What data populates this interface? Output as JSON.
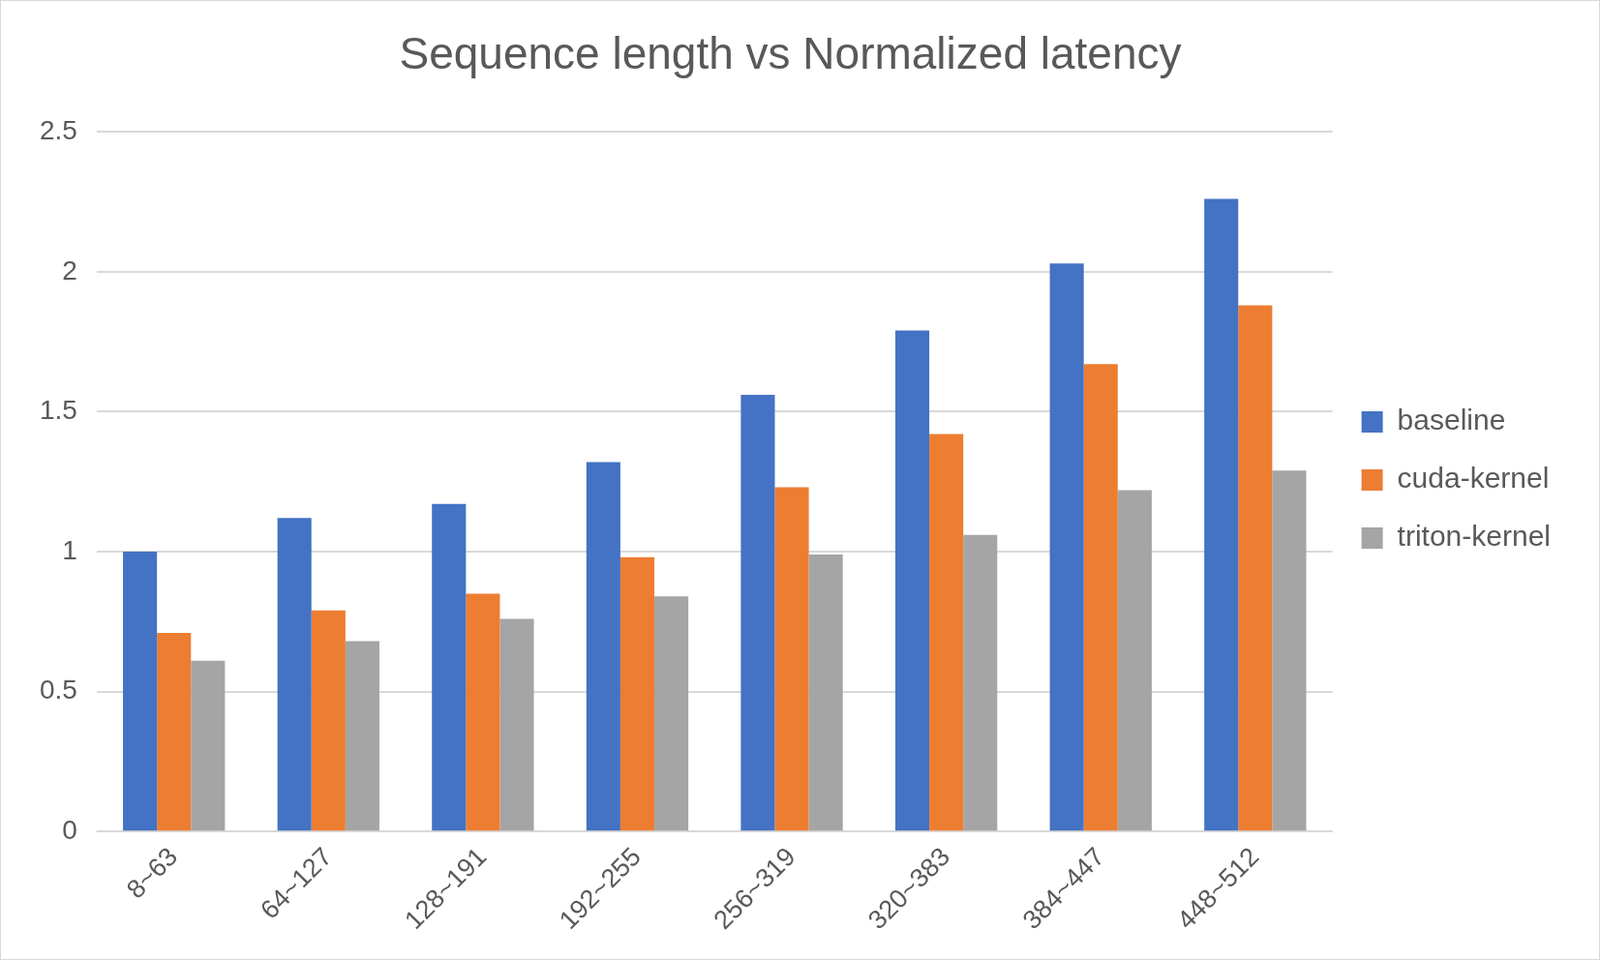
{
  "chart_data": {
    "type": "bar",
    "title": "Sequence length vs Normalized latency",
    "categories": [
      "8~63",
      "64~127",
      "128~191",
      "192~255",
      "256~319",
      "320~383",
      "384~447",
      "448~512"
    ],
    "series": [
      {
        "name": "baseline",
        "color": "#4472c4",
        "values": [
          1.0,
          1.12,
          1.17,
          1.32,
          1.56,
          1.79,
          2.03,
          2.26
        ]
      },
      {
        "name": "cuda-kernel",
        "color": "#ed7d31",
        "values": [
          0.71,
          0.79,
          0.85,
          0.98,
          1.23,
          1.42,
          1.67,
          1.88
        ]
      },
      {
        "name": "triton-kernel",
        "color": "#a5a5a5",
        "values": [
          0.61,
          0.68,
          0.76,
          0.84,
          0.99,
          1.06,
          1.22,
          1.29
        ]
      }
    ],
    "ylim": [
      0,
      2.5
    ],
    "yticks": [
      0,
      0.5,
      1,
      1.5,
      2,
      2.5
    ],
    "grid": true,
    "legend": "right"
  }
}
